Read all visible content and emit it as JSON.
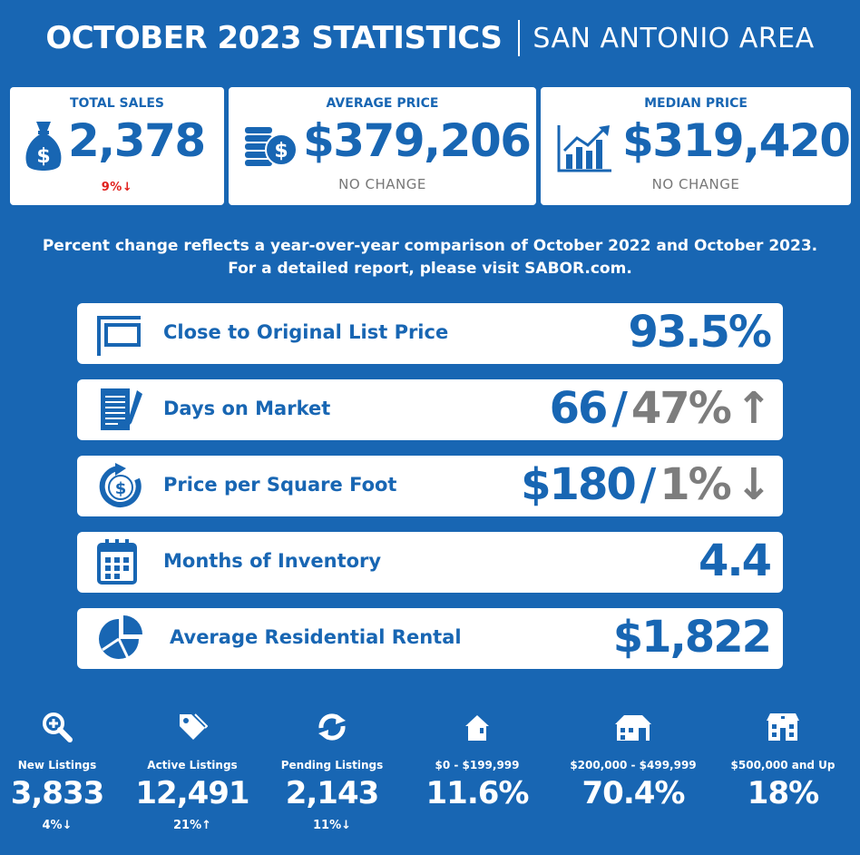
{
  "header": {
    "title": "OCTOBER 2023 STATISTICS",
    "subtitle": "SAN ANTONIO AREA"
  },
  "cards": {
    "total_sales": {
      "label": "TOTAL SALES",
      "value": "2,378",
      "change": "9%",
      "change_direction": "down",
      "icon": "money-bag-icon",
      "change_color": "#e0201c"
    },
    "average_price": {
      "label": "AVERAGE PRICE",
      "value": "$379,206",
      "change": "NO CHANGE",
      "icon": "coin-stack-icon"
    },
    "median_price": {
      "label": "MEDIAN PRICE",
      "value": "$319,420",
      "change": "NO CHANGE",
      "icon": "bar-chart-trend-icon"
    }
  },
  "note": {
    "line1": "Percent change reflects a year-over-year comparison of October 2022 and October 2023.",
    "line2": "For a detailed report, please visit SABOR.com."
  },
  "metrics": [
    {
      "label": "Close to Original List Price",
      "value": "93.5%",
      "change": "",
      "icon": "sign-icon"
    },
    {
      "label": "Days on Market",
      "value": "66",
      "separator": "/",
      "change": "47%",
      "change_direction": "up",
      "icon": "clipboard-icon"
    },
    {
      "label": "Price per Square Foot",
      "value": "$180",
      "separator": "/",
      "change": "1%",
      "change_direction": "down",
      "icon": "dollar-refresh-icon"
    },
    {
      "label": "Months of Inventory",
      "value": "4.4",
      "change": "",
      "icon": "calendar-icon"
    },
    {
      "label": "Average Residential Rental",
      "value": "$1,822",
      "change": "",
      "icon": "pie-chart-icon"
    }
  ],
  "stats": [
    {
      "label": "New Listings",
      "value": "3,833",
      "change": "4%",
      "change_direction": "down",
      "icon": "magnify-plus-icon"
    },
    {
      "label": "Active Listings",
      "value": "12,491",
      "change": "21%",
      "change_direction": "up",
      "icon": "price-tag-icon"
    },
    {
      "label": "Pending Listings",
      "value": "2,143",
      "change": "11%",
      "change_direction": "down",
      "icon": "refresh-arrows-icon"
    },
    {
      "label": "$0 - $199,999",
      "value": "11.6%",
      "change": "",
      "icon": "small-house-icon"
    },
    {
      "label": "$200,000 - $499,999",
      "value": "70.4%",
      "change": "",
      "icon": "medium-house-icon"
    },
    {
      "label": "$500,000 and Up",
      "value": "18%",
      "change": "",
      "icon": "large-house-icon"
    }
  ],
  "colors": {
    "brand_blue": "#1866b3",
    "grey": "#7d7d7d",
    "red": "#e0201c",
    "white": "#ffffff"
  },
  "arrows": {
    "up": "↑",
    "down": "↓"
  }
}
